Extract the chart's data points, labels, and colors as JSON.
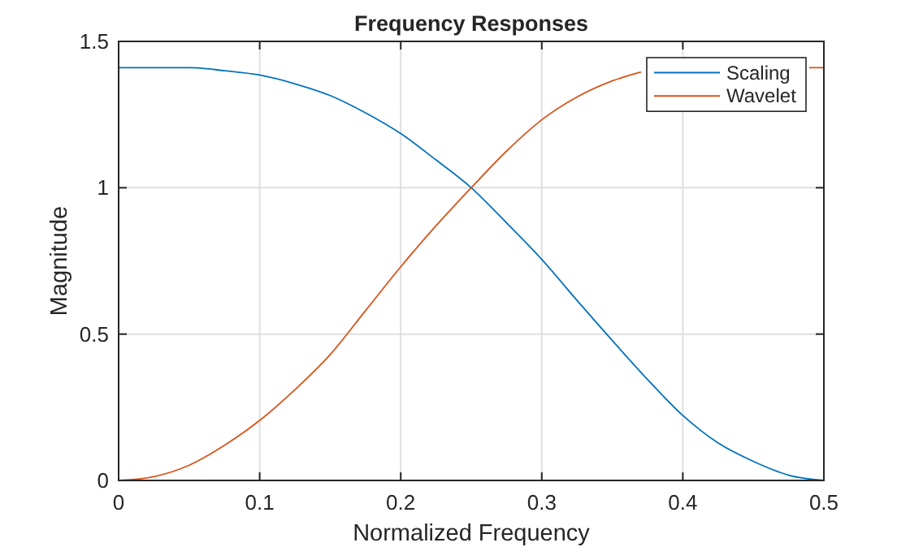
{
  "chart_data": {
    "type": "line",
    "title": "Frequency Responses",
    "xlabel": "Normalized Frequency",
    "ylabel": "Magnitude",
    "xlim": [
      0,
      0.5
    ],
    "ylim": [
      0,
      1.5
    ],
    "xticks": [
      0,
      0.1,
      0.2,
      0.3,
      0.4,
      0.5
    ],
    "yticks": [
      0,
      0.5,
      1,
      1.5
    ],
    "grid": true,
    "legend": "top right",
    "series": [
      {
        "name": "Scaling",
        "color": "#0072bd",
        "x": [
          0,
          0.025,
          0.05,
          0.075,
          0.1,
          0.125,
          0.15,
          0.175,
          0.2,
          0.225,
          0.25,
          0.275,
          0.3,
          0.325,
          0.35,
          0.375,
          0.4,
          0.425,
          0.45,
          0.475,
          0.5
        ],
        "values": [
          1.41,
          1.41,
          1.41,
          1.4,
          1.385,
          1.355,
          1.315,
          1.256,
          1.185,
          1.095,
          1.0,
          0.88,
          0.755,
          0.615,
          0.478,
          0.345,
          0.222,
          0.128,
          0.065,
          0.018,
          0
        ]
      },
      {
        "name": "Wavelet",
        "color": "#d95319",
        "x": [
          0,
          0.025,
          0.05,
          0.075,
          0.1,
          0.125,
          0.15,
          0.175,
          0.2,
          0.225,
          0.25,
          0.275,
          0.3,
          0.325,
          0.35,
          0.37,
          0.43,
          0.49,
          0.5
        ],
        "values": [
          0,
          0.013,
          0.052,
          0.12,
          0.205,
          0.31,
          0.43,
          0.58,
          0.73,
          0.87,
          1.0,
          1.125,
          1.232,
          1.31,
          1.365,
          1.395,
          null,
          1.41,
          1.41
        ]
      }
    ]
  }
}
